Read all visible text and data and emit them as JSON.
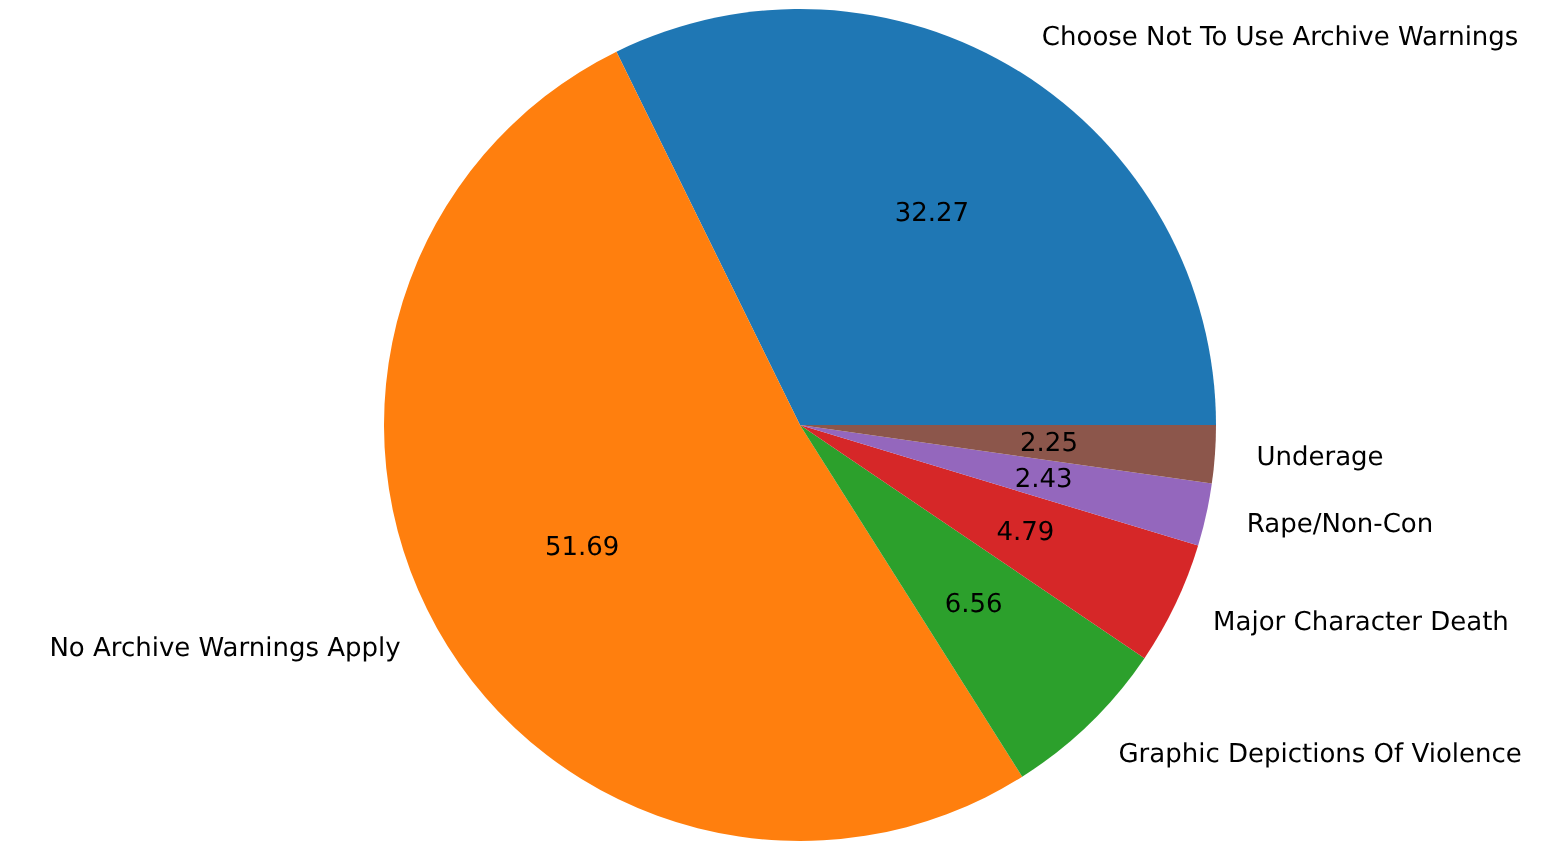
{
  "chart_data": {
    "type": "pie",
    "categories": [
      "Choose Not To Use Archive Warnings",
      "No Archive Warnings Apply",
      "Graphic Depictions Of Violence",
      "Major Character Death",
      "Rape/Non-Con",
      "Underage"
    ],
    "values": [
      32.27,
      51.69,
      6.56,
      4.79,
      2.43,
      2.25
    ],
    "colors": [
      "#1f77b4",
      "#ff7f0e",
      "#2ca02c",
      "#d62728",
      "#9467bd",
      "#8c564b"
    ],
    "data_labels": true
  }
}
